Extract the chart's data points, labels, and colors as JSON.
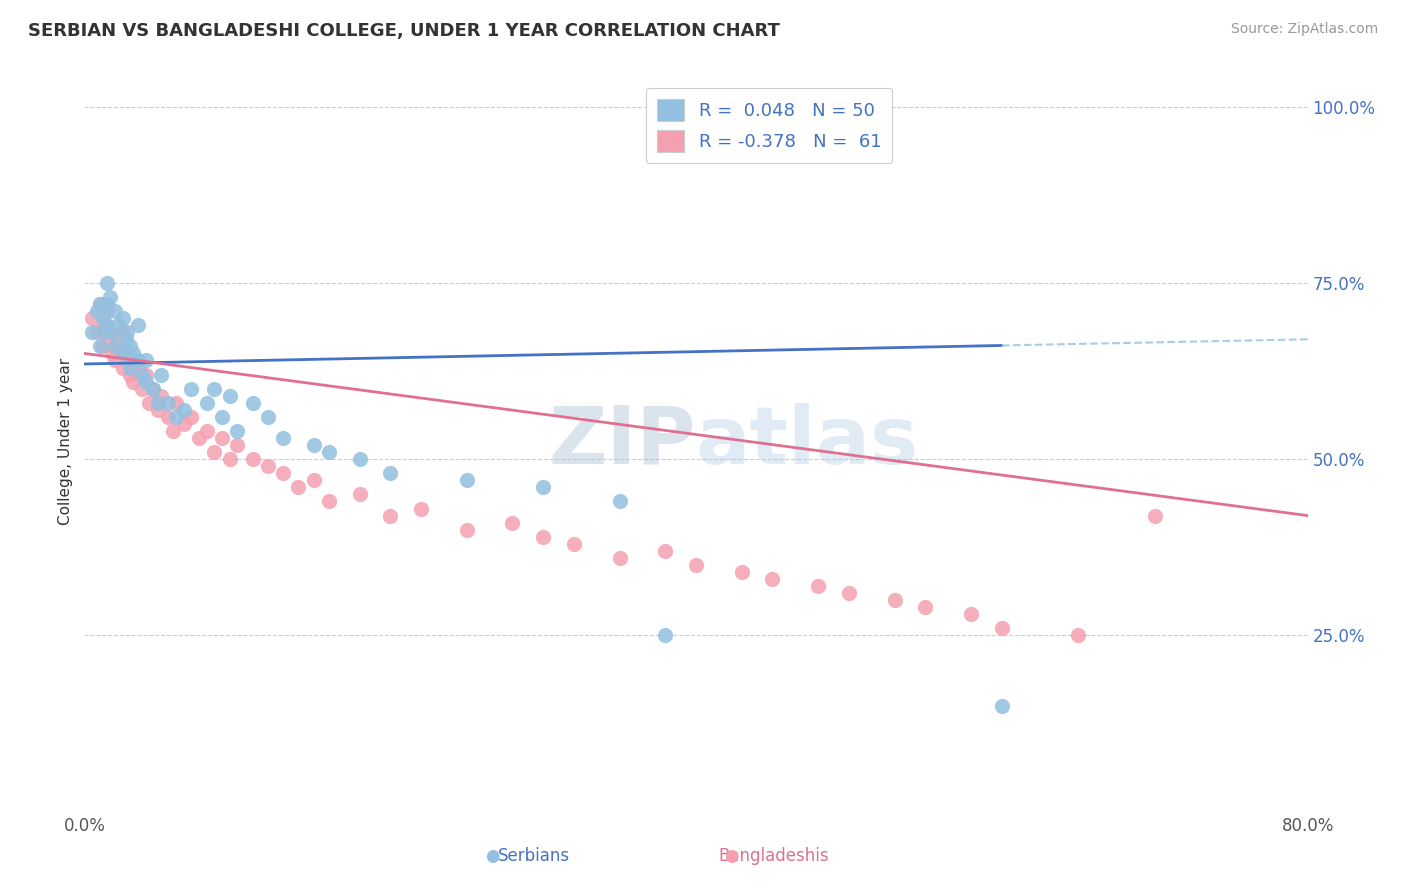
{
  "title": "SERBIAN VS BANGLADESHI COLLEGE, UNDER 1 YEAR CORRELATION CHART",
  "source_text": "Source: ZipAtlas.com",
  "ylabel_label": "College, Under 1 year",
  "right_ytick_vals": [
    1.0,
    0.75,
    0.5,
    0.25
  ],
  "xlim": [
    0.0,
    0.8
  ],
  "ylim": [
    0.0,
    1.05
  ],
  "serbian_R": 0.048,
  "serbian_N": 50,
  "bangladeshi_R": -0.378,
  "bangladeshi_N": 61,
  "serbian_color": "#92C0E0",
  "bangladeshi_color": "#F4A0B0",
  "serbian_line_color": "#4472C4",
  "bangladeshi_line_color": "#E07090",
  "watermark": "ZIPatlas",
  "background_color": "#ffffff",
  "legend_label_s": "R =  0.048   N = 50",
  "legend_label_b": "R = -0.378   N =  61",
  "serbian_x": [
    0.005,
    0.008,
    0.01,
    0.01,
    0.012,
    0.013,
    0.015,
    0.015,
    0.015,
    0.017,
    0.018,
    0.02,
    0.02,
    0.022,
    0.025,
    0.025,
    0.027,
    0.028,
    0.03,
    0.03,
    0.032,
    0.035,
    0.035,
    0.038,
    0.04,
    0.04,
    0.045,
    0.048,
    0.05,
    0.055,
    0.06,
    0.065,
    0.07,
    0.08,
    0.09,
    0.1,
    0.11,
    0.13,
    0.15,
    0.18,
    0.2,
    0.25,
    0.3,
    0.35,
    0.12,
    0.085,
    0.095,
    0.16,
    0.38,
    0.6
  ],
  "serbian_y": [
    0.68,
    0.71,
    0.72,
    0.66,
    0.7,
    0.68,
    0.75,
    0.72,
    0.69,
    0.73,
    0.68,
    0.71,
    0.66,
    0.69,
    0.7,
    0.65,
    0.67,
    0.68,
    0.66,
    0.63,
    0.65,
    0.69,
    0.64,
    0.62,
    0.64,
    0.61,
    0.6,
    0.58,
    0.62,
    0.58,
    0.56,
    0.57,
    0.6,
    0.58,
    0.56,
    0.54,
    0.58,
    0.53,
    0.52,
    0.5,
    0.48,
    0.47,
    0.46,
    0.44,
    0.56,
    0.6,
    0.59,
    0.51,
    0.25,
    0.15
  ],
  "bangladeshi_x": [
    0.005,
    0.008,
    0.01,
    0.012,
    0.013,
    0.015,
    0.015,
    0.018,
    0.02,
    0.02,
    0.022,
    0.025,
    0.025,
    0.028,
    0.03,
    0.03,
    0.032,
    0.035,
    0.038,
    0.04,
    0.042,
    0.045,
    0.048,
    0.05,
    0.055,
    0.058,
    0.06,
    0.065,
    0.07,
    0.075,
    0.08,
    0.085,
    0.09,
    0.095,
    0.1,
    0.11,
    0.12,
    0.13,
    0.14,
    0.15,
    0.16,
    0.18,
    0.2,
    0.22,
    0.25,
    0.28,
    0.3,
    0.32,
    0.35,
    0.38,
    0.4,
    0.43,
    0.45,
    0.48,
    0.5,
    0.53,
    0.55,
    0.58,
    0.6,
    0.65,
    0.7
  ],
  "bangladeshi_y": [
    0.7,
    0.68,
    0.72,
    0.66,
    0.69,
    0.71,
    0.68,
    0.65,
    0.67,
    0.64,
    0.66,
    0.68,
    0.63,
    0.65,
    0.62,
    0.64,
    0.61,
    0.63,
    0.6,
    0.62,
    0.58,
    0.6,
    0.57,
    0.59,
    0.56,
    0.54,
    0.58,
    0.55,
    0.56,
    0.53,
    0.54,
    0.51,
    0.53,
    0.5,
    0.52,
    0.5,
    0.49,
    0.48,
    0.46,
    0.47,
    0.44,
    0.45,
    0.42,
    0.43,
    0.4,
    0.41,
    0.39,
    0.38,
    0.36,
    0.37,
    0.35,
    0.34,
    0.33,
    0.32,
    0.31,
    0.3,
    0.29,
    0.28,
    0.26,
    0.25,
    0.42
  ],
  "trend_s_x0": 0.0,
  "trend_s_x1": 0.8,
  "trend_s_y0": 0.635,
  "trend_s_y1": 0.67,
  "trend_b_x0": 0.0,
  "trend_b_x1": 0.8,
  "trend_b_y0": 0.65,
  "trend_b_y1": 0.42
}
